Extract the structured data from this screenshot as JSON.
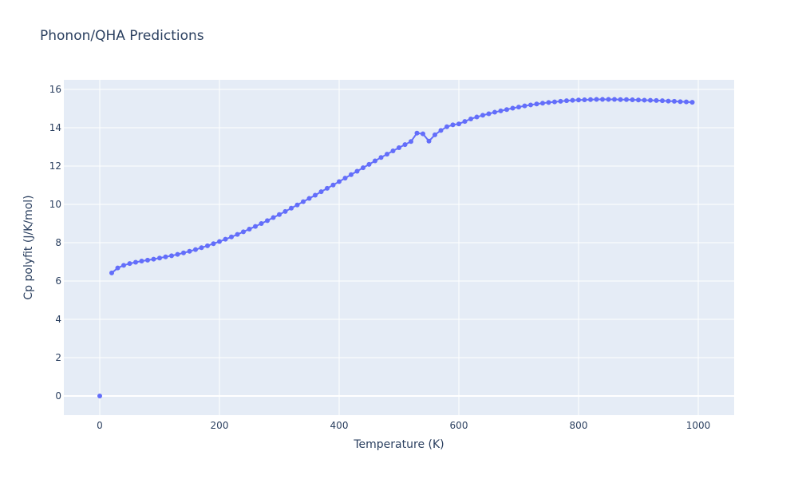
{
  "chart_data": {
    "type": "line",
    "title": "Phonon/QHA Predictions",
    "xlabel": "Temperature (K)",
    "ylabel": "Cp polyfit (J/K/mol)",
    "xlim": [
      -60,
      1060
    ],
    "ylim": [
      -1,
      16.5
    ],
    "x_ticks": [
      0,
      200,
      400,
      600,
      800,
      1000
    ],
    "y_ticks": [
      0,
      2,
      4,
      6,
      8,
      10,
      12,
      14,
      16
    ],
    "x_tick_labels": [
      "0",
      "200",
      "400",
      "600",
      "800",
      "1000"
    ],
    "y_tick_labels": [
      "0",
      "2",
      "4",
      "6",
      "8",
      "10",
      "12",
      "14",
      "16"
    ],
    "grid": true,
    "colors": {
      "series": "#636efa",
      "plot_bg": "#e5ecf6",
      "grid": "#ffffff",
      "text": "#2a3f5f"
    },
    "series": [
      {
        "mode": "lines+markers",
        "x": [
          0,
          20,
          30,
          40,
          50,
          60,
          70,
          80,
          90,
          100,
          110,
          120,
          130,
          140,
          150,
          160,
          170,
          180,
          190,
          200,
          210,
          220,
          230,
          240,
          250,
          260,
          270,
          280,
          290,
          300,
          310,
          320,
          330,
          340,
          350,
          360,
          370,
          380,
          390,
          400,
          410,
          420,
          430,
          440,
          450,
          460,
          470,
          480,
          490,
          500,
          510,
          520,
          530,
          540,
          550,
          560,
          570,
          580,
          590,
          600,
          610,
          620,
          630,
          640,
          650,
          660,
          670,
          680,
          690,
          700,
          710,
          720,
          730,
          740,
          750,
          760,
          770,
          780,
          790,
          800,
          810,
          820,
          830,
          840,
          850,
          860,
          870,
          880,
          890,
          900,
          910,
          920,
          930,
          940,
          950,
          960,
          970,
          980,
          990
        ],
        "y": [
          0.0,
          6.42,
          6.68,
          6.82,
          6.91,
          6.98,
          7.04,
          7.09,
          7.14,
          7.2,
          7.26,
          7.32,
          7.39,
          7.47,
          7.55,
          7.64,
          7.74,
          7.84,
          7.95,
          8.06,
          8.18,
          8.3,
          8.43,
          8.57,
          8.71,
          8.85,
          9.0,
          9.15,
          9.31,
          9.47,
          9.63,
          9.8,
          9.97,
          10.14,
          10.31,
          10.48,
          10.66,
          10.84,
          11.01,
          11.19,
          11.37,
          11.55,
          11.73,
          11.91,
          12.09,
          12.27,
          12.45,
          12.62,
          12.79,
          12.96,
          13.12,
          13.28,
          13.72,
          13.68,
          13.3,
          13.63,
          13.86,
          14.05,
          14.15,
          14.2,
          14.33,
          14.46,
          14.56,
          14.65,
          14.73,
          14.81,
          14.88,
          14.95,
          15.02,
          15.08,
          15.14,
          15.19,
          15.24,
          15.28,
          15.32,
          15.35,
          15.38,
          15.41,
          15.43,
          15.45,
          15.46,
          15.47,
          15.48,
          15.48,
          15.48,
          15.48,
          15.47,
          15.47,
          15.46,
          15.45,
          15.44,
          15.43,
          15.42,
          15.41,
          15.39,
          15.38,
          15.36,
          15.35,
          15.33
        ]
      }
    ]
  }
}
